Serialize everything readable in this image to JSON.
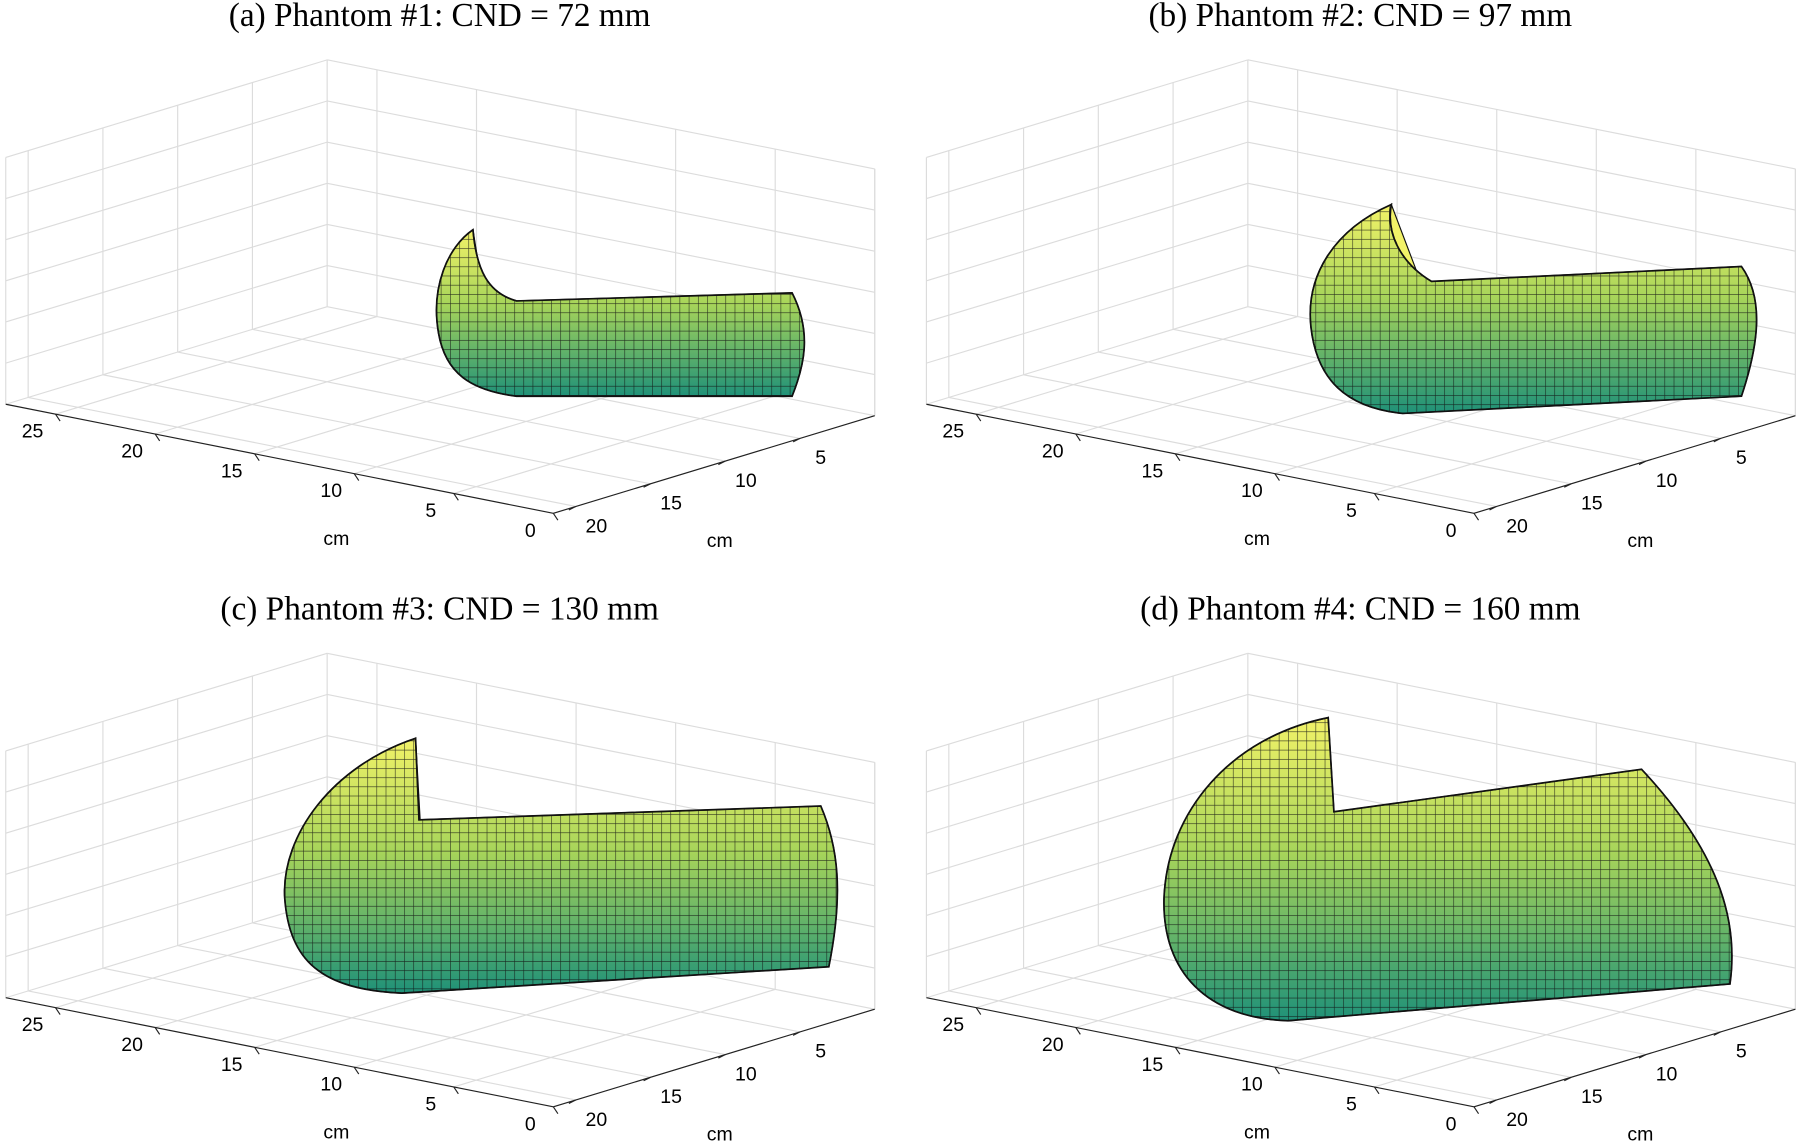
{
  "chart_data": [
    {
      "type": "surface",
      "title": "(a) Phantom #1: CND = 72 mm",
      "xlabel": "cm",
      "ylabel": "cm",
      "xlim": [
        0,
        27.5
      ],
      "xticks": [
        0,
        5,
        10,
        15,
        20,
        25
      ],
      "ylim": [
        0,
        21.5
      ],
      "yticks": [
        5,
        10,
        15,
        20
      ]
    },
    {
      "type": "surface",
      "title": "(b) Phantom #2: CND = 97 mm",
      "xlabel": "cm",
      "ylabel": "cm",
      "xlim": [
        0,
        27.5
      ],
      "xticks": [
        0,
        5,
        10,
        15,
        20,
        25
      ],
      "ylim": [
        0,
        21.5
      ],
      "yticks": [
        5,
        10,
        15,
        20
      ]
    },
    {
      "type": "surface",
      "title": "(c) Phantom #3: CND = 130 mm",
      "xlabel": "cm",
      "ylabel": "cm",
      "xlim": [
        0,
        27.5
      ],
      "xticks": [
        0,
        5,
        10,
        15,
        20,
        25
      ],
      "ylim": [
        0,
        21.5
      ],
      "yticks": [
        5,
        10,
        15,
        20
      ]
    },
    {
      "type": "surface",
      "title": "(d) Phantom #4: CND = 160 mm",
      "xlabel": "cm",
      "ylabel": "cm",
      "xlim": [
        0,
        27.5
      ],
      "xticks": [
        0,
        5,
        10,
        15,
        20,
        25
      ],
      "ylim": [
        0,
        21.5
      ],
      "yticks": [
        5,
        10,
        15,
        20
      ]
    }
  ]
}
